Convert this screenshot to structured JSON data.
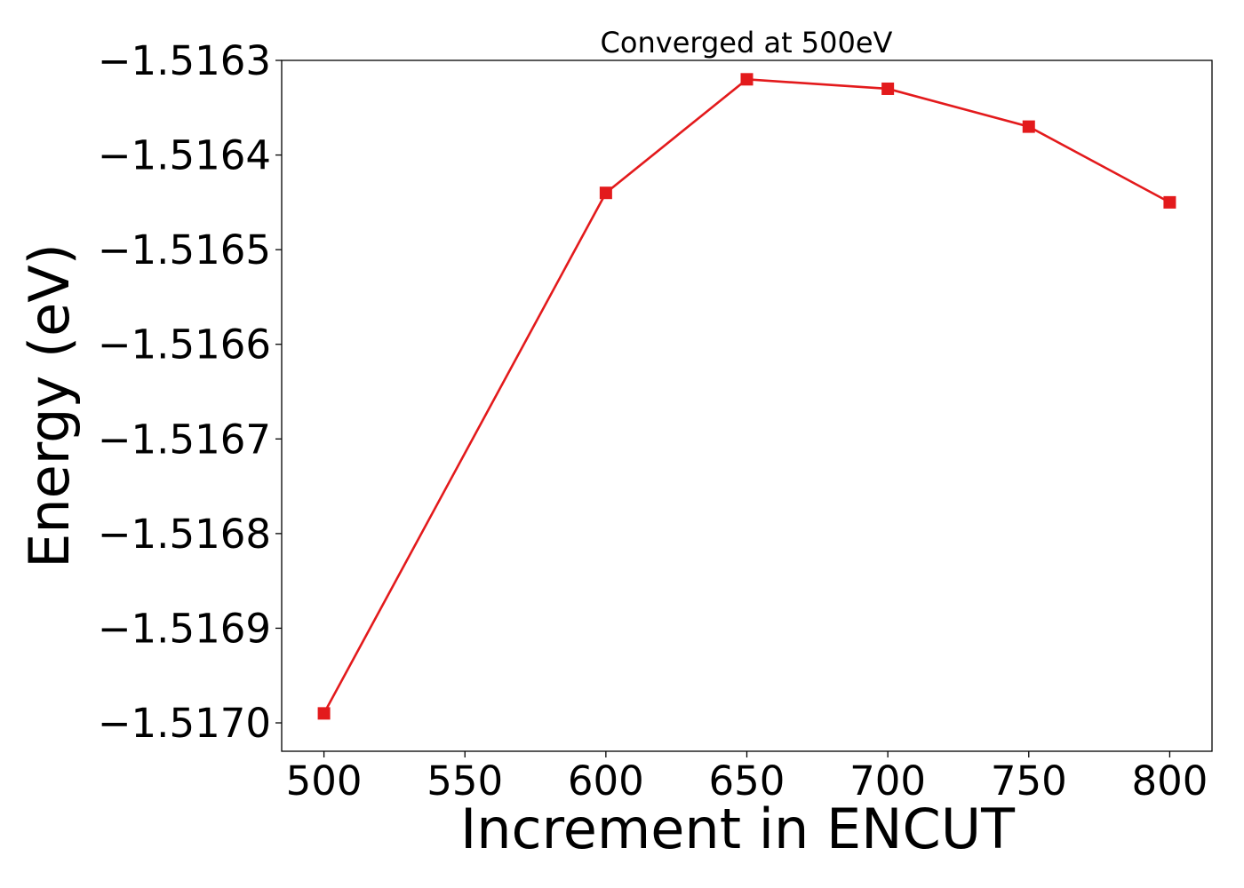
{
  "chart_data": {
    "type": "line",
    "title": "Converged at 500eV",
    "xlabel": "Increment in ENCUT",
    "ylabel": "Energy (eV)",
    "x": [
      500,
      600,
      650,
      700,
      750,
      800
    ],
    "series": [
      {
        "values": [
          -1.51699,
          -1.51644,
          -1.51632,
          -1.51633,
          -1.51637,
          -1.51645
        ],
        "color": "#e31a1c",
        "marker": "square"
      }
    ],
    "xlim": [
      485,
      815
    ],
    "ylim": [
      -1.51703,
      -1.5163
    ],
    "xticks": [
      500,
      550,
      600,
      650,
      700,
      750,
      800
    ],
    "xtick_labels": [
      "500",
      "550",
      "600",
      "650",
      "700",
      "750",
      "800"
    ],
    "yticks": [
      -1.5163,
      -1.5164,
      -1.5165,
      -1.5166,
      -1.5167,
      -1.5168,
      -1.5169,
      -1.517
    ],
    "ytick_labels": [
      "−1.5163",
      "−1.5164",
      "−1.5165",
      "−1.5166",
      "−1.5167",
      "−1.5168",
      "−1.5169",
      "−1.5170"
    ],
    "grid": false,
    "legend": "none"
  }
}
